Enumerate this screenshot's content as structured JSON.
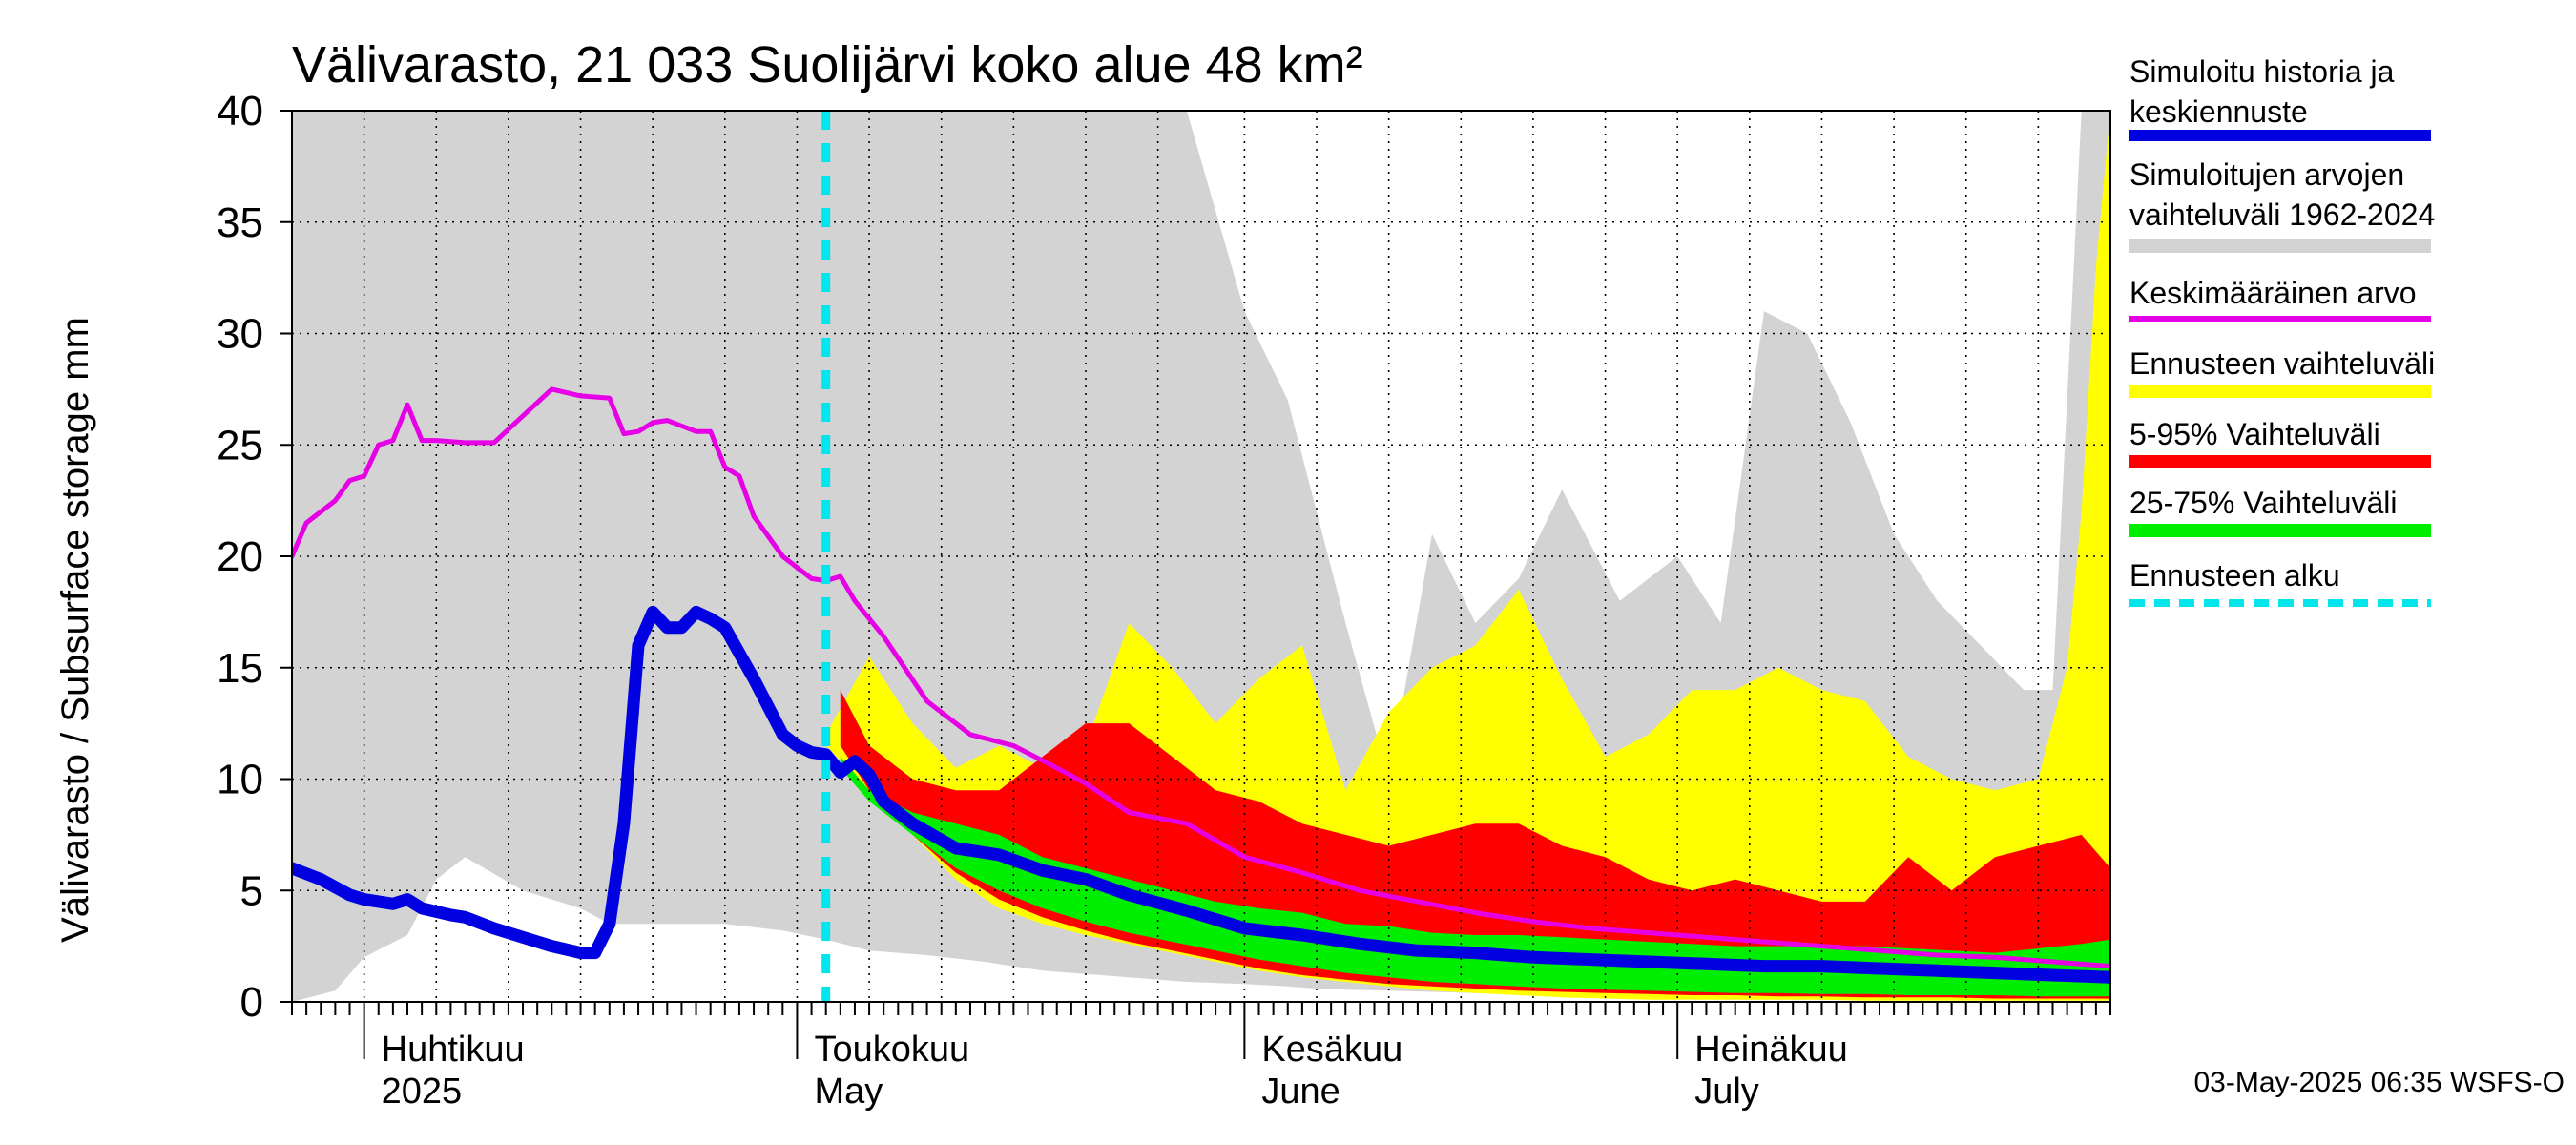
{
  "chart_data": {
    "type": "area",
    "title": "Välivarasto, 21 033 Suolijärvi koko alue 48 km²",
    "ylabel": "Välivarasto / Subsurface storage  mm",
    "ylim": [
      0,
      40
    ],
    "yticks": [
      0,
      5,
      10,
      15,
      20,
      25,
      30,
      35,
      40
    ],
    "xlim": [
      "2025-03-27",
      "2025-07-31"
    ],
    "month_ticks": [
      {
        "date": "2025-04-01",
        "line1": "Huhtikuu",
        "line2": "2025"
      },
      {
        "date": "2025-05-01",
        "line1": "Toukokuu",
        "line2": "May"
      },
      {
        "date": "2025-06-01",
        "line1": "Kesäkuu",
        "line2": "June"
      },
      {
        "date": "2025-07-01",
        "line1": "Heinäkuu",
        "line2": "July"
      }
    ],
    "grid": true,
    "legend_position": "right",
    "forecast_start": "2025-05-03",
    "footer": "03-May-2025 06:35 WSFS-O",
    "colors": {
      "history": "#0000e0",
      "range_hist": "#d3d3d3",
      "mean": "#e600e6",
      "forecast_range": "#ffff00",
      "p5_95": "#ff0000",
      "p25_75": "#00ee00",
      "forecast_start": "#00e5ee"
    },
    "legend": [
      {
        "key": "history",
        "lines": [
          "Simuloitu historia ja",
          "keskiennuste"
        ]
      },
      {
        "key": "range_hist",
        "lines": [
          "Simuloitujen arvojen",
          "vaihteluväli 1962-2024"
        ]
      },
      {
        "key": "mean",
        "lines": [
          "Keskimääräinen arvo"
        ]
      },
      {
        "key": "forecast_range",
        "lines": [
          "Ennusteen vaihteluväli"
        ]
      },
      {
        "key": "p5_95",
        "lines": [
          "5-95% Vaihteluväli"
        ]
      },
      {
        "key": "p25_75",
        "lines": [
          "25-75% Vaihteluväli"
        ]
      },
      {
        "key": "forecast_start",
        "lines": [
          "Ennusteen alku"
        ]
      }
    ],
    "series": [
      {
        "name": "Simuloitujen arvojen vaihteluväli 1962-2024",
        "key": "range_hist",
        "x": [
          "2025-03-27",
          "2025-03-30",
          "2025-04-01",
          "2025-04-04",
          "2025-04-06",
          "2025-04-08",
          "2025-04-12",
          "2025-04-16",
          "2025-04-18",
          "2025-04-20",
          "2025-04-22",
          "2025-04-26",
          "2025-04-30",
          "2025-05-03",
          "2025-05-06",
          "2025-05-10",
          "2025-05-14",
          "2025-05-16",
          "2025-05-18",
          "2025-05-20",
          "2025-05-24",
          "2025-05-28",
          "2025-06-01",
          "2025-06-04",
          "2025-06-06",
          "2025-06-08",
          "2025-06-11",
          "2025-06-14",
          "2025-06-17",
          "2025-06-20",
          "2025-06-23",
          "2025-06-27",
          "2025-07-01",
          "2025-07-04",
          "2025-07-07",
          "2025-07-10",
          "2025-07-13",
          "2025-07-16",
          "2025-07-19",
          "2025-07-22",
          "2025-07-25",
          "2025-07-27",
          "2025-07-29",
          "2025-07-31"
        ],
        "low": [
          0,
          0.5,
          2,
          3,
          5.5,
          6.5,
          5,
          4.2,
          3.5,
          3.5,
          3.5,
          3.5,
          3.2,
          2.8,
          2.3,
          2.1,
          1.8,
          1.6,
          1.4,
          1.3,
          1.1,
          0.9,
          0.8,
          0.7,
          0.6,
          0.55,
          0.5,
          0.45,
          0.4,
          0.38,
          0.35,
          0.3,
          0.3,
          0.25,
          0.2,
          0.2,
          0.2,
          0.2,
          0.15,
          0.15,
          0.1,
          0.1,
          0.1,
          0.1
        ],
        "high": [
          40,
          40,
          40,
          40,
          40,
          40,
          40,
          40,
          40,
          40,
          40,
          40,
          40,
          40,
          40,
          40,
          40,
          40,
          40,
          40,
          40,
          40,
          31,
          27,
          22,
          17,
          10,
          21,
          17,
          19,
          23,
          18,
          20,
          17,
          31,
          30,
          26,
          21,
          18,
          16,
          14,
          14,
          40,
          40
        ]
      },
      {
        "name": "Ennusteen vaihteluväli",
        "key": "forecast_range",
        "x": [
          "2025-05-03",
          "2025-05-06",
          "2025-05-09",
          "2025-05-12",
          "2025-05-15",
          "2025-05-18",
          "2025-05-21",
          "2025-05-24",
          "2025-05-27",
          "2025-05-30",
          "2025-06-02",
          "2025-06-05",
          "2025-06-08",
          "2025-06-11",
          "2025-06-14",
          "2025-06-17",
          "2025-06-20",
          "2025-06-23",
          "2025-06-26",
          "2025-06-29",
          "2025-07-02",
          "2025-07-05",
          "2025-07-08",
          "2025-07-11",
          "2025-07-14",
          "2025-07-17",
          "2025-07-20",
          "2025-07-23",
          "2025-07-26",
          "2025-07-28",
          "2025-07-29",
          "2025-07-30",
          "2025-07-31"
        ],
        "low": [
          11.5,
          9.5,
          7.5,
          5.5,
          4.2,
          3.5,
          3.0,
          2.6,
          2.2,
          1.8,
          1.4,
          1.1,
          0.9,
          0.7,
          0.5,
          0.4,
          0.3,
          0.2,
          0.15,
          0.1,
          0.1,
          0.1,
          0.1,
          0.1,
          0.05,
          0.05,
          0.05,
          0.05,
          0.05,
          0.05,
          0.05,
          0.05,
          0.05
        ],
        "high": [
          12,
          15.5,
          12.5,
          10.5,
          11.5,
          10.5,
          11.5,
          17,
          15,
          12.5,
          14.5,
          16,
          9.5,
          13,
          15,
          16,
          18.5,
          14.5,
          11,
          12,
          14,
          14,
          15,
          14,
          13.5,
          11,
          10,
          9.5,
          10,
          15,
          22,
          33,
          40
        ]
      },
      {
        "name": "5-95% Vaihteluväli",
        "key": "p5_95",
        "x": [
          "2025-05-04",
          "2025-05-06",
          "2025-05-09",
          "2025-05-12",
          "2025-05-15",
          "2025-05-18",
          "2025-05-21",
          "2025-05-24",
          "2025-05-27",
          "2025-05-30",
          "2025-06-02",
          "2025-06-05",
          "2025-06-08",
          "2025-06-11",
          "2025-06-14",
          "2025-06-17",
          "2025-06-20",
          "2025-06-23",
          "2025-06-26",
          "2025-06-29",
          "2025-07-02",
          "2025-07-05",
          "2025-07-08",
          "2025-07-11",
          "2025-07-14",
          "2025-07-17",
          "2025-07-20",
          "2025-07-23",
          "2025-07-26",
          "2025-07-29",
          "2025-07-31"
        ],
        "low": [
          11.5,
          9.5,
          7.5,
          5.8,
          4.6,
          3.8,
          3.2,
          2.7,
          2.3,
          1.9,
          1.5,
          1.2,
          1.0,
          0.8,
          0.7,
          0.6,
          0.5,
          0.45,
          0.4,
          0.35,
          0.3,
          0.3,
          0.25,
          0.25,
          0.2,
          0.2,
          0.2,
          0.15,
          0.15,
          0.15,
          0.15
        ],
        "high": [
          14,
          11.5,
          10,
          9.5,
          9.5,
          11,
          12.5,
          12.5,
          11,
          9.5,
          9,
          8,
          7.5,
          7,
          7.5,
          8,
          8,
          7,
          6.5,
          5.5,
          5,
          5.5,
          5,
          4.5,
          4.5,
          6.5,
          5,
          6.5,
          7,
          7.5,
          6
        ]
      },
      {
        "name": "25-75% Vaihteluväli",
        "key": "p25_75",
        "x": [
          "2025-05-04",
          "2025-05-06",
          "2025-05-09",
          "2025-05-12",
          "2025-05-15",
          "2025-05-18",
          "2025-05-21",
          "2025-05-24",
          "2025-05-27",
          "2025-05-30",
          "2025-06-02",
          "2025-06-05",
          "2025-06-08",
          "2025-06-11",
          "2025-06-14",
          "2025-06-17",
          "2025-06-20",
          "2025-06-23",
          "2025-06-26",
          "2025-06-29",
          "2025-07-02",
          "2025-07-05",
          "2025-07-08",
          "2025-07-11",
          "2025-07-14",
          "2025-07-17",
          "2025-07-20",
          "2025-07-23",
          "2025-07-26",
          "2025-07-29",
          "2025-07-31"
        ],
        "low": [
          10.5,
          9,
          7.5,
          6,
          5,
          4.2,
          3.6,
          3.1,
          2.7,
          2.3,
          1.9,
          1.6,
          1.3,
          1.1,
          0.9,
          0.8,
          0.7,
          0.6,
          0.55,
          0.5,
          0.45,
          0.4,
          0.4,
          0.35,
          0.35,
          0.3,
          0.3,
          0.3,
          0.25,
          0.25,
          0.25
        ],
        "high": [
          11,
          9.5,
          8.5,
          8,
          7.5,
          6.5,
          6,
          5.5,
          5,
          4.5,
          4.2,
          4,
          3.5,
          3.4,
          3.1,
          3.0,
          3.0,
          2.9,
          2.8,
          2.7,
          2.6,
          2.5,
          2.5,
          2.5,
          2.5,
          2.4,
          2.3,
          2.2,
          2.4,
          2.6,
          2.8
        ]
      },
      {
        "name": "Keskimääräinen arvo",
        "key": "mean",
        "x": [
          "2025-03-27",
          "2025-03-28",
          "2025-03-30",
          "2025-03-31",
          "2025-04-01",
          "2025-04-02",
          "2025-04-03",
          "2025-04-04",
          "2025-04-05",
          "2025-04-06",
          "2025-04-08",
          "2025-04-10",
          "2025-04-12",
          "2025-04-14",
          "2025-04-16",
          "2025-04-18",
          "2025-04-19",
          "2025-04-20",
          "2025-04-21",
          "2025-04-22",
          "2025-04-24",
          "2025-04-25",
          "2025-04-26",
          "2025-04-27",
          "2025-04-28",
          "2025-04-30",
          "2025-05-01",
          "2025-05-02",
          "2025-05-03",
          "2025-05-04",
          "2025-05-05",
          "2025-05-07",
          "2025-05-10",
          "2025-05-13",
          "2025-05-16",
          "2025-05-19",
          "2025-05-21",
          "2025-05-24",
          "2025-05-28",
          "2025-06-01",
          "2025-06-05",
          "2025-06-09",
          "2025-06-13",
          "2025-06-17",
          "2025-06-21",
          "2025-06-25",
          "2025-06-29",
          "2025-07-03",
          "2025-07-07",
          "2025-07-11",
          "2025-07-15",
          "2025-07-19",
          "2025-07-23",
          "2025-07-27",
          "2025-07-31"
        ],
        "values": [
          20,
          21.5,
          22.5,
          23.4,
          23.6,
          25,
          25.2,
          26.8,
          25.2,
          25.2,
          25.1,
          25.1,
          26.3,
          27.5,
          27.2,
          27.1,
          25.5,
          25.6,
          26,
          26.1,
          25.6,
          25.6,
          24,
          23.6,
          21.8,
          20,
          19.5,
          19,
          18.9,
          19.1,
          18,
          16.4,
          13.5,
          12,
          11.5,
          10.5,
          9.8,
          8.5,
          8,
          6.5,
          5.8,
          5,
          4.5,
          4,
          3.6,
          3.3,
          3.1,
          2.9,
          2.7,
          2.5,
          2.3,
          2.1,
          2.0,
          1.8,
          1.6
        ]
      },
      {
        "name": "Simuloitu historia ja keskiennuste",
        "key": "history",
        "x": [
          "2025-03-27",
          "2025-03-29",
          "2025-03-31",
          "2025-04-01",
          "2025-04-03",
          "2025-04-04",
          "2025-04-05",
          "2025-04-07",
          "2025-04-08",
          "2025-04-10",
          "2025-04-12",
          "2025-04-14",
          "2025-04-16",
          "2025-04-17",
          "2025-04-18",
          "2025-04-19",
          "2025-04-20",
          "2025-04-21",
          "2025-04-22",
          "2025-04-23",
          "2025-04-24",
          "2025-04-25",
          "2025-04-26",
          "2025-04-28",
          "2025-04-30",
          "2025-05-01",
          "2025-05-02",
          "2025-05-03",
          "2025-05-04",
          "2025-05-05",
          "2025-05-06",
          "2025-05-07",
          "2025-05-09",
          "2025-05-12",
          "2025-05-15",
          "2025-05-18",
          "2025-05-21",
          "2025-05-24",
          "2025-05-28",
          "2025-06-01",
          "2025-06-05",
          "2025-06-09",
          "2025-06-13",
          "2025-06-17",
          "2025-06-21",
          "2025-06-25",
          "2025-06-29",
          "2025-07-03",
          "2025-07-07",
          "2025-07-11",
          "2025-07-15",
          "2025-07-19",
          "2025-07-23",
          "2025-07-27",
          "2025-07-31"
        ],
        "values": [
          6,
          5.5,
          4.8,
          4.6,
          4.4,
          4.6,
          4.2,
          3.9,
          3.8,
          3.3,
          2.9,
          2.5,
          2.2,
          2.2,
          3.5,
          8,
          16,
          17.5,
          16.8,
          16.8,
          17.5,
          17.2,
          16.8,
          14.5,
          12,
          11.5,
          11.2,
          11.1,
          10.3,
          10.8,
          10.2,
          9,
          8,
          6.9,
          6.6,
          5.9,
          5.5,
          4.8,
          4.1,
          3.3,
          3.0,
          2.6,
          2.3,
          2.2,
          2.0,
          1.9,
          1.8,
          1.7,
          1.6,
          1.6,
          1.5,
          1.4,
          1.3,
          1.2,
          1.1
        ]
      }
    ]
  }
}
